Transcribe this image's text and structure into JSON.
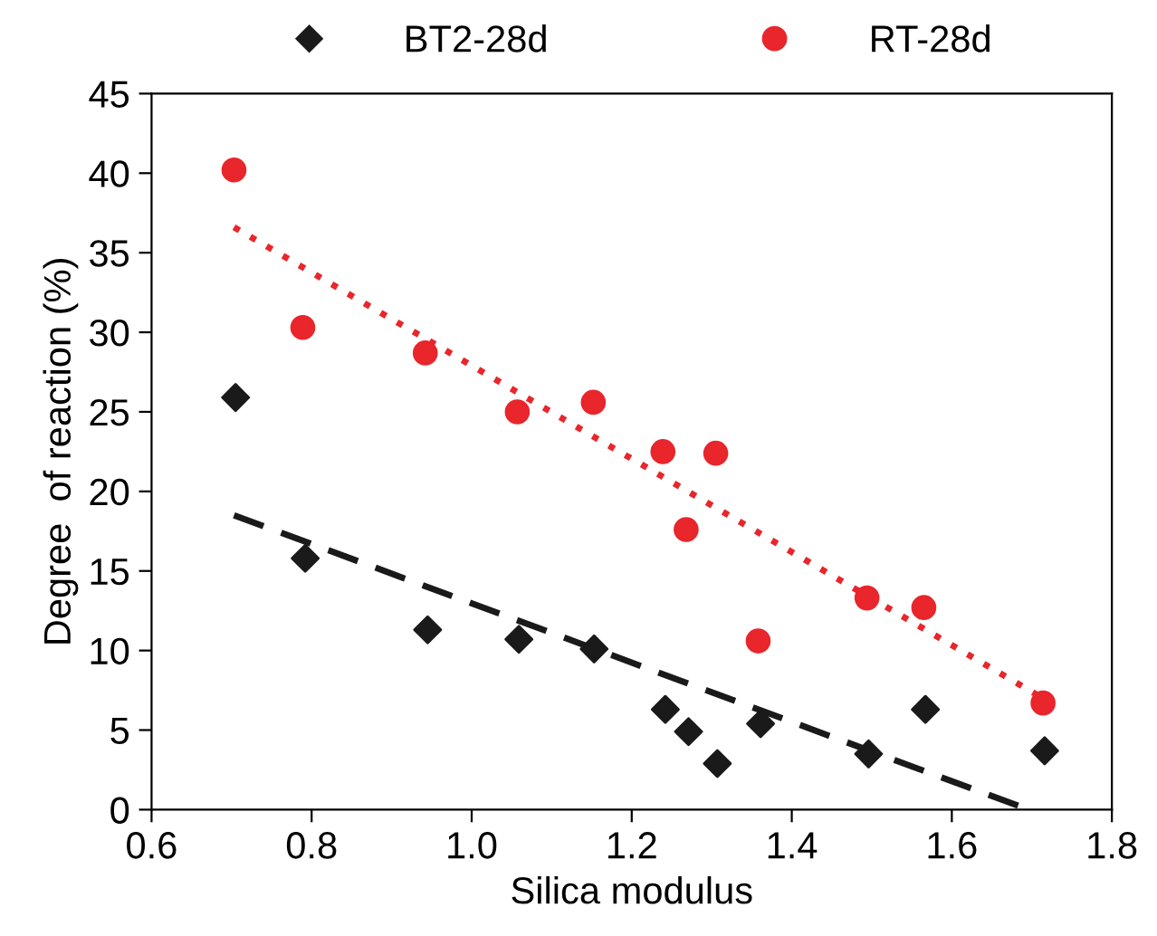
{
  "chart_data": {
    "type": "scatter",
    "xlabel": "Silica modulus",
    "ylabel": "Degree  of reaction (%)",
    "xlim": [
      0.6,
      1.8
    ],
    "xticks": [
      {
        "value": 0.6,
        "label": "0.6"
      },
      {
        "value": 0.8,
        "label": "0.8"
      },
      {
        "value": 1.0,
        "label": "1.0"
      },
      {
        "value": 1.2,
        "label": "1.2"
      },
      {
        "value": 1.4,
        "label": "1.4"
      },
      {
        "value": 1.6,
        "label": "1.6"
      },
      {
        "value": 1.8,
        "label": "1.8"
      }
    ],
    "ylim": [
      0,
      45
    ],
    "yticks": [
      0,
      5,
      10,
      15,
      20,
      25,
      30,
      35,
      40,
      45
    ],
    "grid": false,
    "legend": "top",
    "series": [
      {
        "name": "BT2-28d",
        "marker": "diamond",
        "color": "#1a1a1a",
        "x": [
          0.705,
          0.792,
          0.945,
          1.059,
          1.153,
          1.242,
          1.271,
          1.307,
          1.361,
          1.496,
          1.567,
          1.716
        ],
        "values": [
          25.9,
          15.8,
          11.3,
          10.7,
          10.1,
          6.3,
          4.9,
          2.9,
          5.4,
          3.5,
          6.3,
          3.7
        ]
      },
      {
        "name": "RT-28d",
        "marker": "circle",
        "color": "#e8262b",
        "x": [
          0.703,
          0.789,
          0.942,
          1.057,
          1.152,
          1.239,
          1.305,
          1.268,
          1.358,
          1.494,
          1.565,
          1.714
        ],
        "values": [
          40.2,
          30.3,
          28.7,
          25.0,
          25.6,
          22.5,
          22.4,
          17.6,
          10.6,
          13.3,
          12.7,
          6.7
        ]
      },
      {
        "type": "line",
        "line_style": "dashed",
        "color": "#1a1a1a",
        "x": [
          0.703,
          1.696
        ],
        "values": [
          18.5,
          0
        ]
      },
      {
        "type": "line",
        "line_style": "dotted",
        "color": "#e8262b",
        "x": [
          0.703,
          1.714
        ],
        "values": [
          36.6,
          7.0
        ]
      }
    ]
  }
}
